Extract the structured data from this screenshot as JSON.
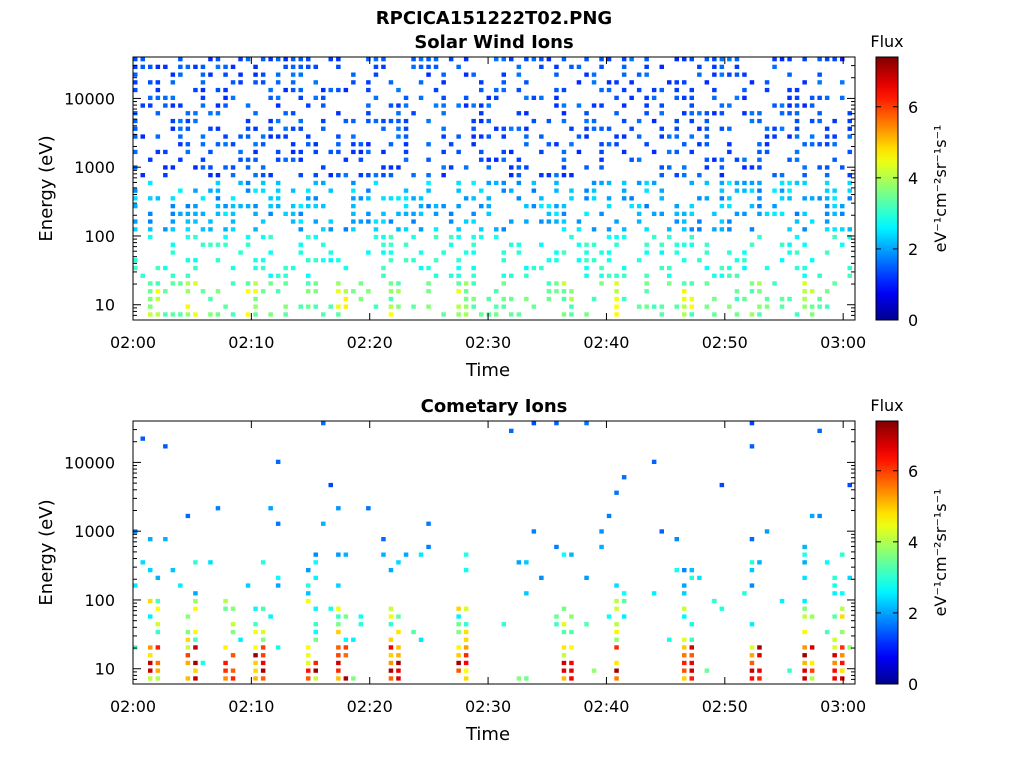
{
  "figure": {
    "filename": "RPCICA151222T02.PNG"
  },
  "colormap": {
    "name": "jet",
    "stops": [
      "#00008f",
      "#0000ff",
      "#00ffff",
      "#ffff00",
      "#ff0000",
      "#800000"
    ]
  },
  "chart_data": [
    {
      "type": "heatmap",
      "title": "Solar Wind Ions",
      "xlabel": "Time",
      "ylabel": "Energy (eV)",
      "x_range": [
        "02:00",
        "03:01"
      ],
      "x_ticks": [
        "02:00",
        "02:10",
        "02:20",
        "02:30",
        "02:40",
        "02:50",
        "03:00"
      ],
      "y_scale": "log",
      "y_range": [
        6,
        40000
      ],
      "y_ticks": [
        10,
        100,
        1000,
        10000
      ],
      "y_tick_labels": [
        "10",
        "100",
        "1000",
        "10000"
      ],
      "colorbar": {
        "label": "Flux",
        "unit_label": "eV⁻¹cm⁻²sr⁻¹s⁻¹",
        "range": [
          0,
          7.4
        ],
        "ticks": [
          "0",
          "2",
          "4",
          "6"
        ]
      },
      "pattern": {
        "description": "sparse scattered ion counts across full energy range; dense green/yellow columns below 20 eV",
        "hot_times": [
          "02:02",
          "02:05",
          "02:10",
          "02:18",
          "02:22",
          "02:28",
          "02:37",
          "02:41",
          "02:47",
          "02:53",
          "02:57"
        ]
      }
    },
    {
      "type": "heatmap",
      "title": "Cometary Ions",
      "xlabel": "Time",
      "ylabel": "Energy (eV)",
      "x_range": [
        "02:00",
        "03:01"
      ],
      "x_ticks": [
        "02:00",
        "02:10",
        "02:20",
        "02:30",
        "02:40",
        "02:50",
        "03:00"
      ],
      "y_scale": "log",
      "y_range": [
        6,
        40000
      ],
      "y_ticks": [
        10,
        100,
        1000,
        10000
      ],
      "y_tick_labels": [
        "10",
        "100",
        "1000",
        "10000"
      ],
      "colorbar": {
        "label": "Flux",
        "unit_label": "eV⁻¹cm⁻²sr⁻¹s⁻¹",
        "range": [
          0,
          7.4
        ],
        "ticks": [
          "0",
          "2",
          "4",
          "6"
        ]
      },
      "pattern": {
        "description": "sparse counts mostly below 1000 eV; intense yellow/orange/red bursts at 8-25 eV",
        "hot_times": [
          "02:02",
          "02:05",
          "02:08",
          "02:11",
          "02:15",
          "02:18",
          "02:22",
          "02:28",
          "02:37",
          "02:41",
          "02:47",
          "02:53",
          "02:57",
          "03:00"
        ]
      }
    }
  ]
}
